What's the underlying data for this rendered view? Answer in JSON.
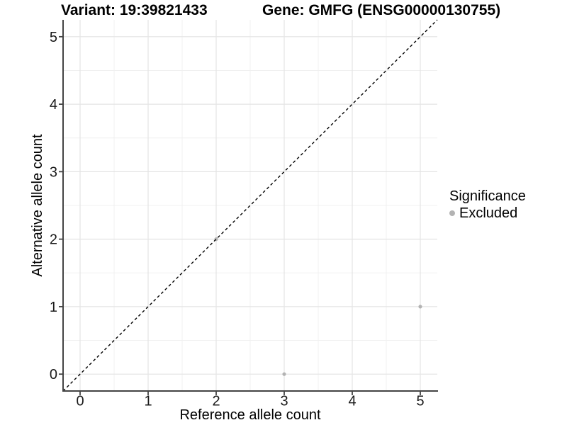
{
  "chart_data": {
    "type": "scatter",
    "titles": {
      "left": "Variant: 19:39821433",
      "right": "Gene: GMFG (ENSG00000130755)"
    },
    "xlabel": "Reference allele count",
    "ylabel": "Alternative allele count",
    "xlim": [
      -0.25,
      5.25
    ],
    "ylim": [
      -0.25,
      5.25
    ],
    "x_ticks": [
      0,
      1,
      2,
      3,
      4,
      5
    ],
    "y_ticks": [
      0,
      1,
      2,
      3,
      4,
      5
    ],
    "x_minor": [
      0.5,
      1.5,
      2.5,
      3.5,
      4.5
    ],
    "y_minor": [
      0.5,
      1.5,
      2.5,
      3.5,
      4.5
    ],
    "grid": {
      "major_color": "#e4e4e4",
      "minor_color": "#f0f0f0"
    },
    "axis_color": "#444444",
    "tick_label_color": "#1a1a1a",
    "series": [
      {
        "name": "Excluded",
        "color": "#b3b3b3",
        "points": [
          [
            2,
            2
          ],
          [
            3,
            0
          ],
          [
            5,
            1
          ]
        ]
      }
    ],
    "reference_line": {
      "kind": "identity",
      "style": "dashed",
      "color": "#000000",
      "from": [
        -0.25,
        -0.25
      ],
      "to": [
        5.25,
        5.25
      ]
    },
    "legend": {
      "title": "Significance",
      "position": "right",
      "entries": [
        {
          "label": "Excluded",
          "color": "#b3b3b3"
        }
      ]
    }
  }
}
